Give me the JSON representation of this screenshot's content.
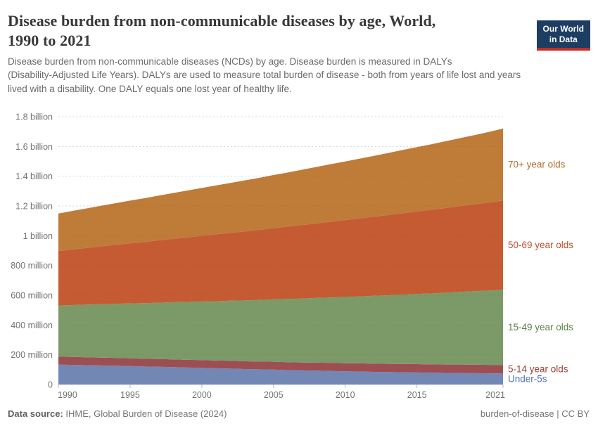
{
  "header": {
    "title_line1": "Disease burden from non-communicable diseases by age, World,",
    "title_line2": "1990 to 2021",
    "subtitle_line1": "Disease burden from non-communicable diseases (NCDs) by age. Disease burden is measured in DALYs",
    "subtitle_line2": "(Disability-Adjusted Life Years). DALYs are used to measure total burden of disease - both from years of life lost and years",
    "subtitle_line3": "lived with a disability. One DALY equals one lost year of healthy life.",
    "logo": {
      "line1": "Our World",
      "line2": "in Data",
      "bg_color": "#1d3d63",
      "bar_color": "#c62d26"
    }
  },
  "chart_data": {
    "type": "area",
    "stacked": true,
    "title": "Disease burden from non-communicable diseases by age, World, 1990 to 2021",
    "xlabel": "",
    "ylabel": "",
    "values_in": "million DALYs",
    "ylim": [
      0,
      1800
    ],
    "grid": "dashed-horizontal",
    "legend_position": "right-of-plot",
    "x": [
      1990,
      1991,
      1992,
      1993,
      1994,
      1995,
      1996,
      1997,
      1998,
      1999,
      2000,
      2001,
      2002,
      2003,
      2004,
      2005,
      2006,
      2007,
      2008,
      2009,
      2010,
      2011,
      2012,
      2013,
      2014,
      2015,
      2016,
      2017,
      2018,
      2019,
      2020,
      2021
    ],
    "x_ticks": [
      1990,
      1995,
      2000,
      2005,
      2010,
      2015,
      2021
    ],
    "y_ticks": [
      {
        "value": 0,
        "label": "0"
      },
      {
        "value": 200,
        "label": "200 million"
      },
      {
        "value": 400,
        "label": "400 million"
      },
      {
        "value": 600,
        "label": "600 million"
      },
      {
        "value": 800,
        "label": "800 million"
      },
      {
        "value": 1000,
        "label": "1 billion"
      },
      {
        "value": 1200,
        "label": "1.2 billion"
      },
      {
        "value": 1400,
        "label": "1.4 billion"
      },
      {
        "value": 1600,
        "label": "1.6 billion"
      },
      {
        "value": 1800,
        "label": "1.8 billion"
      }
    ],
    "series": [
      {
        "name": "Under-5s",
        "slug": "under-5s",
        "color": "#7287b4",
        "label_color": "#4f71b8",
        "values": [
          134,
          132,
          130,
          128,
          126,
          124,
          121,
          119,
          117,
          114,
          112,
          109,
          107,
          104,
          102,
          100,
          97,
          95,
          93,
          91,
          89,
          87,
          85,
          84,
          82,
          81,
          79,
          78,
          77,
          76,
          75,
          74
        ]
      },
      {
        "name": "5-14 year olds",
        "slug": "5-14-year-olds",
        "color": "#9d4e52",
        "label_color": "#9b3d35",
        "values": [
          53,
          53,
          53,
          53,
          53,
          52,
          52,
          52,
          52,
          52,
          52,
          52,
          52,
          52,
          52,
          53,
          53,
          53,
          54,
          54,
          54,
          55,
          55,
          55,
          56,
          56,
          56,
          56,
          57,
          57,
          57,
          58
        ]
      },
      {
        "name": "15-49 year olds",
        "slug": "15-49-year-olds",
        "color": "#7b9a68",
        "label_color": "#578144",
        "values": [
          344,
          349,
          354,
          359,
          364,
          369,
          374,
          379,
          384,
          389,
          394,
          399,
          404,
          409,
          414,
          419,
          425,
          430,
          435,
          440,
          445,
          450,
          456,
          461,
          466,
          472,
          477,
          483,
          488,
          494,
          499,
          505
        ]
      },
      {
        "name": "50-69 year olds",
        "slug": "50-69-year-olds",
        "color": "#c55b33",
        "label_color": "#be4d2b",
        "values": [
          366,
          374,
          381,
          389,
          396,
          404,
          411,
          419,
          426,
          434,
          441,
          449,
          456,
          464,
          471,
          479,
          486,
          494,
          501,
          509,
          517,
          524,
          532,
          539,
          547,
          554,
          562,
          569,
          577,
          584,
          592,
          600
        ]
      },
      {
        "name": "70+ year olds",
        "slug": "70-plus-year-olds",
        "color": "#bf7b38",
        "label_color": "#ad6e2c",
        "values": [
          252,
          259,
          266,
          273,
          280,
          287,
          294,
          301,
          308,
          315,
          322,
          329,
          336,
          343,
          350,
          357,
          364,
          372,
          379,
          387,
          394,
          402,
          409,
          417,
          425,
          433,
          441,
          449,
          457,
          465,
          474,
          483
        ]
      }
    ]
  },
  "footer": {
    "source_label": "Data source:",
    "source_text": "IHME, Global Burden of Disease (2024)",
    "right_text": "burden-of-disease | CC BY"
  }
}
